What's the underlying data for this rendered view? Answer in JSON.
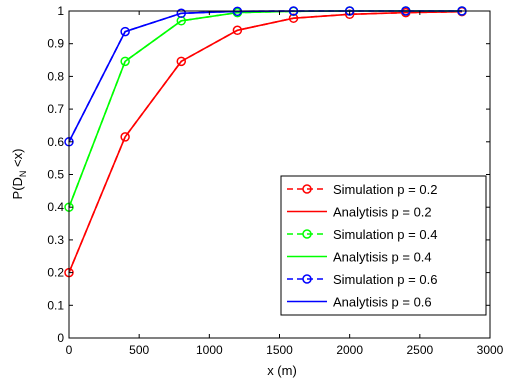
{
  "chart_data": {
    "type": "line",
    "xlabel": "x (m)",
    "ylabel_main": "P(D",
    "ylabel_sub": "N",
    "ylabel_tail": " <x)",
    "xlim": [
      0,
      3000
    ],
    "ylim": [
      0,
      1
    ],
    "xticks": [
      0,
      500,
      1000,
      1500,
      2000,
      2500,
      3000
    ],
    "yticks": [
      0,
      0.1,
      0.2,
      0.3,
      0.4,
      0.5,
      0.6,
      0.7,
      0.8,
      0.9,
      1
    ],
    "grid": false,
    "legend_position": "bottom-right",
    "x": [
      0,
      400,
      800,
      1200,
      1600,
      2000,
      2400,
      2800
    ],
    "series": [
      {
        "name": "Simulation p = 0.2",
        "style": "dashed-circle",
        "color": "#ff0000",
        "values": [
          0.2,
          0.615,
          0.846,
          0.941,
          0.978,
          0.99,
          0.995,
          0.998
        ]
      },
      {
        "name": "Analytisis p = 0.2",
        "style": "solid",
        "color": "#ff0000",
        "values": [
          0.2,
          0.615,
          0.846,
          0.941,
          0.978,
          0.99,
          0.995,
          0.998
        ]
      },
      {
        "name": "Simulation p = 0.4",
        "style": "dashed-circle",
        "color": "#00ff00",
        "values": [
          0.4,
          0.846,
          0.97,
          0.995,
          0.999,
          1.0,
          1.0,
          1.0
        ]
      },
      {
        "name": "Analytisis p = 0.4",
        "style": "solid",
        "color": "#00ff00",
        "values": [
          0.4,
          0.846,
          0.97,
          0.995,
          0.999,
          1.0,
          1.0,
          1.0
        ]
      },
      {
        "name": "Simulation p = 0.6",
        "style": "dashed-circle",
        "color": "#0000ff",
        "values": [
          0.6,
          0.937,
          0.993,
          0.999,
          1.0,
          1.0,
          1.0,
          1.0
        ]
      },
      {
        "name": "Analytisis p = 0.6",
        "style": "solid",
        "color": "#0000ff",
        "values": [
          0.6,
          0.937,
          0.993,
          0.999,
          1.0,
          1.0,
          1.0,
          1.0
        ]
      }
    ]
  }
}
